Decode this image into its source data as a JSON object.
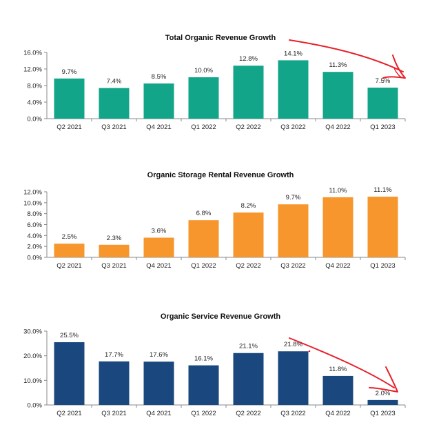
{
  "chart_data": [
    {
      "type": "bar",
      "title": "Total Organic Revenue Growth",
      "categories": [
        "Q2 2021",
        "Q3 2021",
        "Q4 2021",
        "Q1 2022",
        "Q2 2022",
        "Q3 2022",
        "Q4 2022",
        "Q1 2023"
      ],
      "values": [
        9.7,
        7.4,
        8.5,
        10.0,
        12.8,
        14.1,
        11.3,
        7.5
      ],
      "value_labels": [
        "9.7%",
        "7.4%",
        "8.5%",
        "10.0%",
        "12.8%",
        "14.1%",
        "11.3%",
        "7.5%"
      ],
      "yticks": [
        "0.0%",
        "4.0%",
        "8.0%",
        "12.0%",
        "16.0%"
      ],
      "ylim": [
        0,
        16
      ],
      "color": "#12a58a",
      "annotation": "hand-drawn red downward-trend arrow from Q3 2022 to Q1 2023"
    },
    {
      "type": "bar",
      "title": "Organic Storage Rental Revenue Growth",
      "categories": [
        "Q2 2021",
        "Q3 2021",
        "Q4 2021",
        "Q1 2022",
        "Q2 2022",
        "Q3 2022",
        "Q4 2022",
        "Q1 2023"
      ],
      "values": [
        2.5,
        2.3,
        3.6,
        6.8,
        8.2,
        9.7,
        11.0,
        11.1
      ],
      "value_labels": [
        "2.5%",
        "2.3%",
        "3.6%",
        "6.8%",
        "8.2%",
        "9.7%",
        "11.0%",
        "11.1%"
      ],
      "yticks": [
        "0.0%",
        "2.0%",
        "4.0%",
        "6.0%",
        "8.0%",
        "10.0%",
        "12.0%"
      ],
      "ylim": [
        0,
        12
      ],
      "color": "#f7962d"
    },
    {
      "type": "bar",
      "title": "Organic Service Revenue Growth",
      "categories": [
        "Q2 2021",
        "Q3 2021",
        "Q4 2021",
        "Q1 2022",
        "Q2 2022",
        "Q3 2022",
        "Q4 2022",
        "Q1 2023"
      ],
      "values": [
        25.5,
        17.7,
        17.6,
        16.1,
        21.1,
        21.8,
        11.8,
        2.0
      ],
      "value_labels": [
        "25.5%",
        "17.7%",
        "17.6%",
        "16.1%",
        "21.1%",
        "21.8%",
        "11.8%",
        "2.0%"
      ],
      "yticks": [
        "0.0%",
        "10.0%",
        "20.0%",
        "30.0%"
      ],
      "ylim": [
        0,
        30
      ],
      "color": "#1a487e",
      "annotation": "hand-drawn red downward-trend arrow from Q3 2022 to Q1 2023"
    }
  ]
}
